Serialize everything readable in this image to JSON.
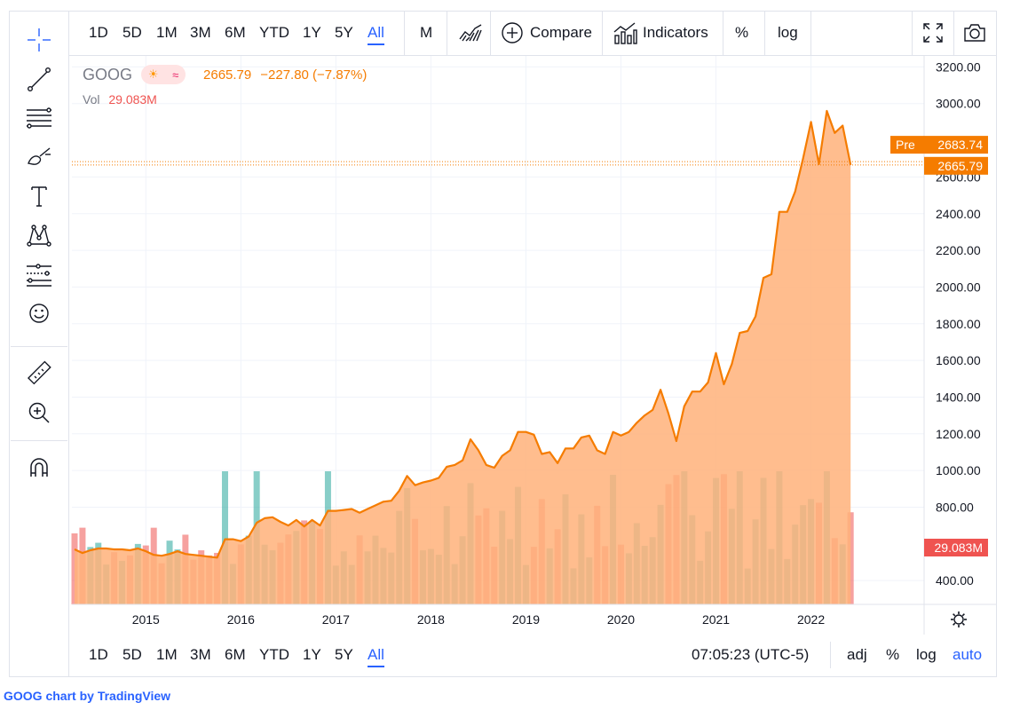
{
  "top_toolbar": {
    "ranges": [
      "1D",
      "5D",
      "1M",
      "3M",
      "6M",
      "YTD",
      "1Y",
      "5Y",
      "All"
    ],
    "active_range": "All",
    "interval": "M",
    "compare_label": "Compare",
    "indicators_label": "Indicators",
    "percent_label": "%",
    "log_label": "log"
  },
  "bottom_toolbar": {
    "ranges": [
      "1D",
      "5D",
      "1M",
      "3M",
      "6M",
      "YTD",
      "1Y",
      "5Y",
      "All"
    ],
    "time": "07:05:23 (UTC-5)",
    "adj_label": "adj",
    "percent_label": "%",
    "log_label": "log",
    "auto_label": "auto"
  },
  "left_toolbar": {
    "icons": [
      "crosshair-icon",
      "trend-line-icon",
      "fib-retracement-icon",
      "brush-icon",
      "text-icon",
      "pattern-icon",
      "forecast-icon",
      "emoji-icon",
      "ruler-icon",
      "zoom-in-icon",
      "magnet-icon"
    ]
  },
  "legend": {
    "symbol": "GOOG",
    "last": "2665.79",
    "change": "−227.80 (−7.87%)",
    "vol_label": "Vol",
    "vol_value": "29.083M"
  },
  "price_scale": {
    "pre_label": "Pre",
    "pre_price": "2683.74",
    "last_price": "2665.79",
    "vol_tag": "29.083M"
  },
  "footer": {
    "credit_symbol": "GOOG chart",
    "credit_by": "by",
    "credit_brand": "TradingView"
  },
  "colors": {
    "line": "#f57c00",
    "area": "#ffb27a",
    "vol_up": "#26a69a",
    "vol_down": "#ef5350",
    "accent": "#2962ff"
  },
  "chart_data": {
    "type": "area",
    "x_start": "2014-04",
    "x_interval": "month",
    "y": [
      570,
      550,
      565,
      575,
      575,
      570,
      570,
      565,
      575,
      560,
      540,
      535,
      545,
      560,
      545,
      540,
      535,
      530,
      525,
      625,
      625,
      615,
      640,
      715,
      740,
      745,
      720,
      700,
      730,
      695,
      730,
      700,
      780,
      780,
      785,
      790,
      770,
      790,
      810,
      830,
      835,
      890,
      970,
      920,
      935,
      945,
      960,
      1020,
      1030,
      1055,
      1170,
      1110,
      1030,
      1015,
      1080,
      1110,
      1210,
      1210,
      1195,
      1090,
      1100,
      1040,
      1120,
      1120,
      1180,
      1190,
      1110,
      1090,
      1210,
      1190,
      1210,
      1260,
      1300,
      1330,
      1440,
      1310,
      1160,
      1350,
      1430,
      1430,
      1480,
      1640,
      1470,
      1580,
      1750,
      1760,
      1840,
      2050,
      2070,
      2410,
      2410,
      2520,
      2700,
      2900,
      2670,
      2960,
      2840,
      2880,
      2666
    ],
    "volume_visible": true,
    "y_ticks": [
      400,
      800,
      1000,
      1200,
      1400,
      1600,
      1800,
      2000,
      2200,
      2400,
      2600,
      3000,
      3200
    ],
    "y_tick_labels": [
      "400.00",
      "800.00",
      "1000.00",
      "1200.00",
      "1400.00",
      "1600.00",
      "1800.00",
      "2000.00",
      "2200.00",
      "2400.00",
      "2600.00",
      "3000.00",
      "3200.00"
    ],
    "x_tick_labels": [
      "2015",
      "2016",
      "2017",
      "2018",
      "2019",
      "2020",
      "2021",
      "2022"
    ],
    "ylim": [
      270,
      3260
    ],
    "grid": true,
    "price_line_style": "dotted"
  }
}
